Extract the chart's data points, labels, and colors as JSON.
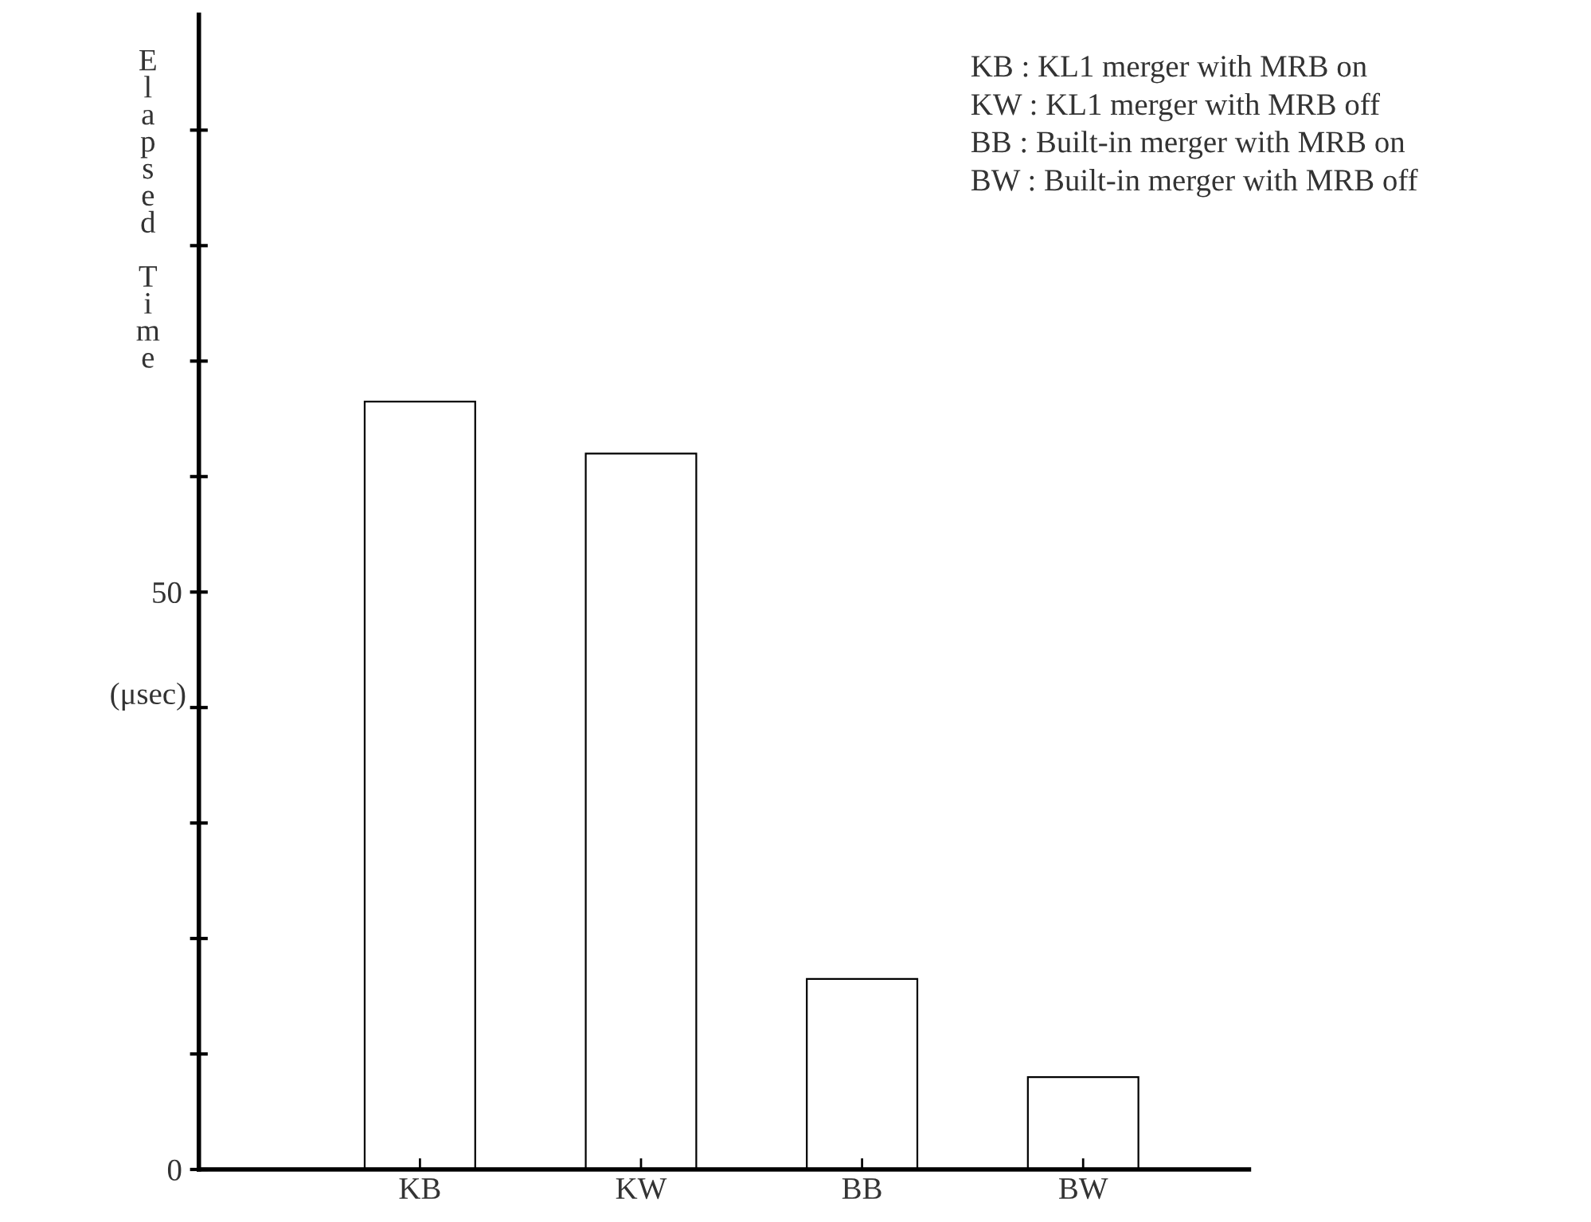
{
  "chart_data": {
    "type": "bar",
    "ylabel": "Elapsed Time (μsec)",
    "categories": [
      "KB",
      "KW",
      "BB",
      "BW"
    ],
    "values": [
      66.5,
      62,
      16.5,
      8
    ],
    "color": "#ffffff",
    "ylim": [
      0,
      100
    ],
    "yticks": [
      0,
      {
        "value": 10,
        "label": null
      },
      {
        "value": 20,
        "label": null
      },
      {
        "value": 30,
        "label": null
      },
      {
        "value": 40,
        "label": null
      },
      50,
      {
        "value": 60,
        "label": null
      },
      {
        "value": 70,
        "label": null
      },
      {
        "value": 80,
        "label": null
      },
      {
        "value": 90,
        "label": null
      }
    ],
    "annotations": [
      "KB : KL1 merger with MRB on",
      "KW : KL1 merger with MRB off",
      "BB : Built-in merger with MRB on",
      "BW : Built-in merger with MRB off"
    ],
    "grid": false,
    "legend": false
  }
}
